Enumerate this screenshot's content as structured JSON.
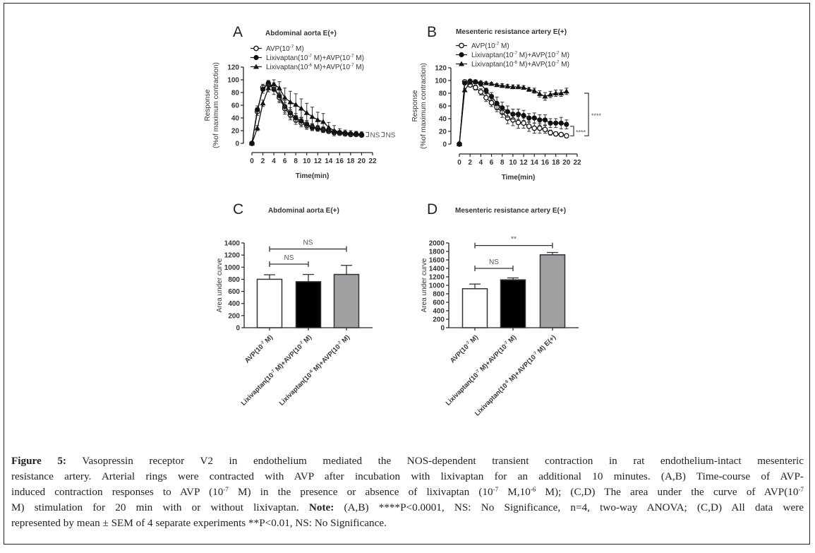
{
  "chart_data": [
    {
      "panel": "A",
      "type": "line",
      "title": "Abdominal aorta E(+)",
      "xlabel": "Time(min)",
      "ylabel": [
        "Response",
        "(%of maximum contraction)"
      ],
      "xlim": [
        0,
        22
      ],
      "ylim": [
        0,
        120
      ],
      "xticks": [
        "0",
        "2",
        "4",
        "6",
        "8",
        "10",
        "12",
        "14",
        "16",
        "18",
        "20",
        "22"
      ],
      "yticks": [
        "0",
        "20",
        "40",
        "60",
        "80",
        "100",
        "120"
      ],
      "x": [
        0,
        1,
        2,
        3,
        4,
        5,
        6,
        7,
        8,
        9,
        10,
        11,
        12,
        13,
        14,
        15,
        16,
        17,
        18,
        19,
        20
      ],
      "series": [
        {
          "name": "AVP(10^-7 M)",
          "legend_prefix": "AVP(10",
          "legend_sup": "-7",
          "legend_suffix": " M)",
          "marker": "open-circle",
          "values": [
            0,
            50,
            88,
            93,
            90,
            72,
            55,
            45,
            37,
            32,
            28,
            25,
            23,
            21,
            19,
            17,
            16,
            15,
            14,
            14,
            13
          ],
          "errors": [
            0,
            6,
            5,
            4,
            5,
            8,
            9,
            8,
            7,
            6,
            6,
            5,
            4,
            4,
            3,
            3,
            3,
            3,
            2,
            2,
            2
          ]
        },
        {
          "name": "Lixivaptan(10^-7 M)+AVP(10^-7 M)",
          "legend_prefix": "Lixivaptan(10",
          "legend_sup": "-7",
          "legend_mid": " M)+AVP(10",
          "legend_sup2": "-7",
          "legend_suffix": " M)",
          "marker": "filled-circle",
          "values": [
            0,
            53,
            85,
            95,
            85,
            75,
            58,
            48,
            40,
            35,
            30,
            26,
            24,
            22,
            20,
            18,
            17,
            16,
            15,
            15,
            14
          ],
          "errors": [
            0,
            6,
            6,
            4,
            8,
            9,
            9,
            8,
            7,
            6,
            6,
            5,
            4,
            4,
            3,
            3,
            3,
            3,
            2,
            2,
            2
          ]
        },
        {
          "name": "Lixivaptan(10^-6 M)+AVP(10^-7 M)",
          "legend_prefix": "Lixivaptan(10",
          "legend_sup": "-6",
          "legend_mid": " M)+AVP(10",
          "legend_sup2": "-7",
          "legend_suffix": " M)",
          "marker": "filled-triangle",
          "values": [
            0,
            24,
            63,
            87,
            93,
            87,
            72,
            65,
            61,
            55,
            48,
            42,
            37,
            34,
            25,
            20,
            18,
            17,
            16,
            15,
            15
          ],
          "errors": [
            0,
            4,
            5,
            6,
            7,
            10,
            15,
            17,
            17,
            15,
            15,
            15,
            12,
            13,
            8,
            8,
            5,
            4,
            4,
            4,
            3
          ]
        }
      ],
      "annotations": [
        "NS",
        "NS"
      ]
    },
    {
      "panel": "B",
      "type": "line",
      "title": "Mesenteric resistance artery E(+)",
      "xlabel": "Time(min)",
      "ylabel": [
        "Response",
        "(%of maximum contraction)"
      ],
      "xlim": [
        0,
        22
      ],
      "ylim": [
        0,
        120
      ],
      "xticks": [
        "0",
        "2",
        "4",
        "6",
        "8",
        "10",
        "12",
        "14",
        "16",
        "18",
        "20",
        "22"
      ],
      "yticks": [
        "0",
        "20",
        "40",
        "60",
        "80",
        "100",
        "120"
      ],
      "x": [
        0,
        1,
        2,
        3,
        4,
        5,
        6,
        7,
        8,
        9,
        10,
        11,
        12,
        13,
        14,
        15,
        16,
        17,
        18,
        19,
        20
      ],
      "series": [
        {
          "name": "AVP(10^-7 M)",
          "legend_prefix": "AVP(10",
          "legend_sup": "-7",
          "legend_suffix": " M)",
          "marker": "open-circle",
          "values": [
            0,
            98,
            93,
            89,
            82,
            73,
            65,
            58,
            50,
            41,
            38,
            34,
            33,
            28,
            25,
            25,
            23,
            18,
            16,
            15,
            13
          ],
          "errors": [
            0,
            2,
            3,
            4,
            5,
            6,
            6,
            7,
            8,
            9,
            9,
            9,
            8,
            8,
            8,
            8,
            6,
            4,
            3,
            2,
            2
          ]
        },
        {
          "name": "Lixivaptan(10^-7 M)+AVP(10^-7 M)",
          "legend_prefix": "Lixivaptan(10",
          "legend_sup": "-7",
          "legend_mid": " M)+AVP(10",
          "legend_sup2": "-7",
          "legend_suffix": " M)",
          "marker": "filled-circle",
          "values": [
            0,
            96,
            99,
            98,
            95,
            84,
            75,
            64,
            57,
            51,
            47,
            47,
            45,
            41,
            41,
            38,
            38,
            33,
            33,
            33,
            31
          ],
          "errors": [
            0,
            2,
            2,
            3,
            4,
            4,
            6,
            10,
            9,
            9,
            8,
            8,
            8,
            7,
            8,
            8,
            8,
            7,
            7,
            9,
            7
          ]
        },
        {
          "name": "Lixivaptan(10^-6 M)+AVP(10^-7 M)",
          "legend_prefix": "Lixivaptan(10",
          "legend_sup": "-6",
          "legend_mid": " M)+AVP(10",
          "legend_sup2": "-7",
          "legend_suffix": " M)",
          "marker": "filled-triangle",
          "values": [
            0,
            85,
            97,
            98,
            97,
            96,
            95,
            93,
            92,
            91,
            90,
            90,
            89,
            86,
            84,
            79,
            75,
            78,
            80,
            80,
            83
          ],
          "errors": [
            0,
            2,
            2,
            2,
            2,
            2,
            2,
            2,
            3,
            3,
            3,
            3,
            3,
            3,
            4,
            5,
            6,
            5,
            5,
            5,
            5
          ]
        }
      ],
      "annotations": [
        "****",
        "****"
      ]
    },
    {
      "panel": "C",
      "type": "bar",
      "title": "Abdominal aorta E(+)",
      "ylabel": "Area under curve",
      "ylim": [
        0,
        1400
      ],
      "yticks": [
        "0",
        "200",
        "400",
        "600",
        "800",
        "1000",
        "1200",
        "1400"
      ],
      "categories": [
        {
          "prefix": "AVP(10",
          "sup": "-7",
          "suffix": " M)"
        },
        {
          "prefix": "Lixivaptan(10",
          "sup": "-7",
          "mid": " M)+AVP(10",
          "sup2": "-7",
          "suffix": " M)"
        },
        {
          "prefix": "Lixivaptan(10",
          "sup": "-6",
          "mid": " M)+AVP(10",
          "sup2": "-7",
          "suffix": " M)"
        }
      ],
      "values": [
        800,
        760,
        880
      ],
      "errors": [
        75,
        120,
        150
      ],
      "colors": [
        "#ffffff",
        "#000000",
        "#a0a0a2"
      ],
      "comparisons": [
        {
          "from": 0,
          "to": 1,
          "label": "NS",
          "level": 1050
        },
        {
          "from": 0,
          "to": 2,
          "label": "NS",
          "level": 1300
        }
      ]
    },
    {
      "panel": "D",
      "type": "bar",
      "title": "Mesenteric resistance artery E(+)",
      "ylabel": "Area under curve",
      "ylim": [
        0,
        2000
      ],
      "yticks": [
        "0",
        "200",
        "400",
        "600",
        "800",
        "1000",
        "1200",
        "1400",
        "1600",
        "1800",
        "2000"
      ],
      "categories": [
        {
          "prefix": "AVP(10",
          "sup": "-7",
          "suffix": " M)"
        },
        {
          "prefix": "Lixivaptan(10",
          "sup": "-7",
          "mid": " M)+AVP(10",
          "sup2": "-7",
          "suffix": " M)"
        },
        {
          "prefix": "Lixivaptan(10",
          "sup": "-6",
          "mid": " M)+AVP(10",
          "sup2": "-7",
          "suffix": " M) E(+)"
        }
      ],
      "values": [
        920,
        1130,
        1720
      ],
      "errors": [
        110,
        45,
        55
      ],
      "colors": [
        "#ffffff",
        "#000000",
        "#a0a0a2"
      ],
      "comparisons": [
        {
          "from": 0,
          "to": 1,
          "label": "NS",
          "level": 1400
        },
        {
          "from": 0,
          "to": 2,
          "label": "**",
          "level": 1940
        }
      ]
    }
  ],
  "caption": {
    "label": "Figure 5:",
    "lines": [
      " Vasopressin receptor V2 in endothelium mediated the NOS-dependent transient contraction in rat endothelium-intact mesenteric",
      "resistance artery. Arterial rings were contracted with AVP after incubation with lixivaptan for an additional 10 minutes. (A,B) Time-course of AVP-",
      "induced contraction responses to AVP (10",
      "-7",
      " M) in the presence or absence of lixivaptan (10",
      "-7",
      " M,10",
      "-6",
      " M); (C,D) The area under the curve of AVP(10",
      "-7"
    ],
    "line4_a": "M) stimulation for 20 min with or without lixivaptan. ",
    "note_label": "Note:",
    "line4_b": " (A,B) ****P<0.0001, NS: No Significance, n=4, two-way ANOVA; (C,D) All data were",
    "line5": "represented by mean ± SEM of 4 separate experiments **P<0.01, NS: No Significance."
  }
}
